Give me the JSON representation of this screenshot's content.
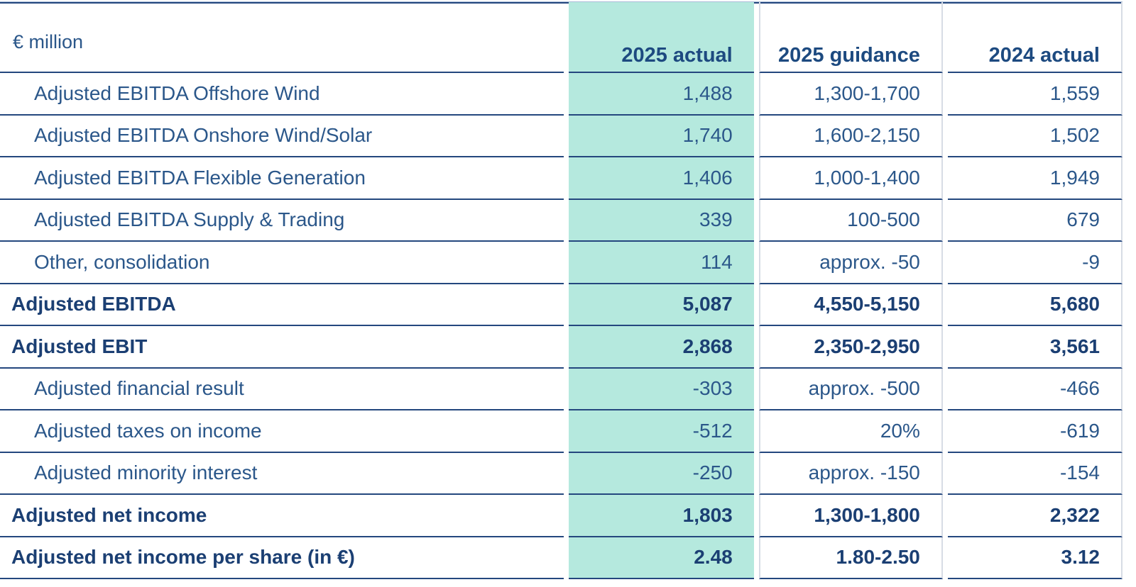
{
  "table": {
    "unit_label": "€ million",
    "columns": [
      {
        "key": "actual2025",
        "label": "2025 actual",
        "highlighted": true
      },
      {
        "key": "guidance2025",
        "label": "2025 guidance",
        "highlighted": false
      },
      {
        "key": "actual2024",
        "label": "2024 actual",
        "highlighted": false
      }
    ],
    "rows": [
      {
        "label": "Adjusted EBITDA Offshore Wind",
        "indent": true,
        "bold": false,
        "actual2025": "1,488",
        "guidance2025": "1,300-1,700",
        "actual2024": "1,559"
      },
      {
        "label": "Adjusted EBITDA Onshore Wind/Solar",
        "indent": true,
        "bold": false,
        "actual2025": "1,740",
        "guidance2025": "1,600-2,150",
        "actual2024": "1,502"
      },
      {
        "label": "Adjusted EBITDA Flexible Generation",
        "indent": true,
        "bold": false,
        "actual2025": "1,406",
        "guidance2025": "1,000-1,400",
        "actual2024": "1,949"
      },
      {
        "label": "Adjusted EBITDA Supply & Trading",
        "indent": true,
        "bold": false,
        "actual2025": "339",
        "guidance2025": "100-500",
        "actual2024": "679"
      },
      {
        "label": "Other, consolidation",
        "indent": true,
        "bold": false,
        "actual2025": "114",
        "guidance2025": "approx. -50",
        "actual2024": "-9"
      },
      {
        "label": "Adjusted EBITDA",
        "indent": false,
        "bold": true,
        "actual2025": "5,087",
        "guidance2025": "4,550-5,150",
        "actual2024": "5,680"
      },
      {
        "label": "Adjusted EBIT",
        "indent": false,
        "bold": true,
        "actual2025": "2,868",
        "guidance2025": "2,350-2,950",
        "actual2024": "3,561"
      },
      {
        "label": "Adjusted financial result",
        "indent": true,
        "bold": false,
        "actual2025": "-303",
        "guidance2025": "approx. -500",
        "actual2024": "-466"
      },
      {
        "label": "Adjusted taxes on income",
        "indent": true,
        "bold": false,
        "actual2025": "-512",
        "guidance2025": "20%",
        "actual2024": "-619"
      },
      {
        "label": "Adjusted minority interest",
        "indent": true,
        "bold": false,
        "actual2025": "-250",
        "guidance2025": "approx. -150",
        "actual2024": "-154"
      },
      {
        "label": "Adjusted net income",
        "indent": false,
        "bold": true,
        "actual2025": "1,803",
        "guidance2025": "1,300-1,800",
        "actual2024": "2,322"
      },
      {
        "label": "Adjusted net income per share (in €)",
        "indent": false,
        "bold": true,
        "actual2025": "2.48",
        "guidance2025": "1.80-2.50",
        "actual2024": "3.12"
      }
    ]
  },
  "colors": {
    "highlight_column": "#b5e9de",
    "text_navy": "#2b578a",
    "text_navy_bold": "#1b3f73",
    "row_border": "#24477e",
    "column_divider": "#d7dce5"
  }
}
